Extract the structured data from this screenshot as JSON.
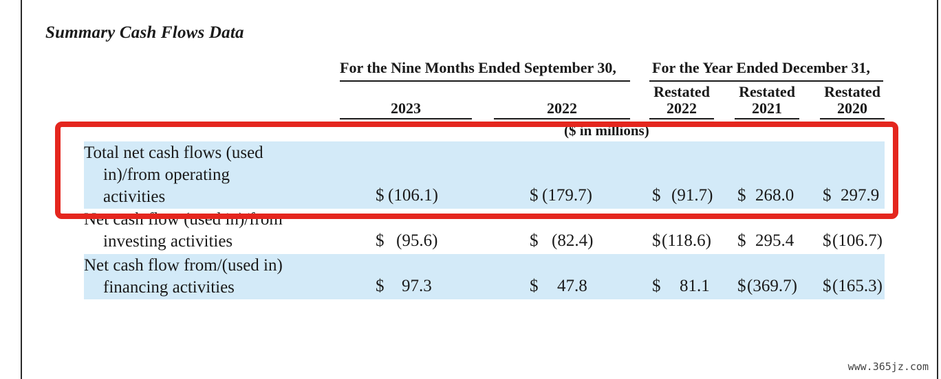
{
  "title": "Summary Cash Flows Data",
  "group_headers": {
    "nine_months": "For the Nine Months Ended September 30,",
    "year_ended": "For the Year Ended December 31,"
  },
  "columns": [
    {
      "line1": "",
      "line2": "2023"
    },
    {
      "line1": "",
      "line2": "2022"
    },
    {
      "line1": "Restated",
      "line2": "2022"
    },
    {
      "line1": "Restated",
      "line2": "2021"
    },
    {
      "line1": "Restated",
      "line2": "2020"
    }
  ],
  "units": "($ in millions)",
  "rows": [
    {
      "label_lines": [
        "Total net cash flows (used",
        "in)/from operating",
        "activities"
      ],
      "highlighted": true,
      "values": [
        {
          "sym": "$",
          "num": "(106.1)"
        },
        {
          "sym": "$",
          "num": "(179.7)"
        },
        {
          "sym": "$",
          "num": "(91.7)"
        },
        {
          "sym": "$",
          "num": "268.0"
        },
        {
          "sym": "$",
          "num": "297.9"
        }
      ]
    },
    {
      "label_lines": [
        "Net cash flow (used in)/from",
        "investing activities"
      ],
      "highlighted": false,
      "values": [
        {
          "sym": "$",
          "num": "(95.6)"
        },
        {
          "sym": "$",
          "num": "(82.4)"
        },
        {
          "sym": "$",
          "num": "(118.6)"
        },
        {
          "sym": "$",
          "num": "295.4"
        },
        {
          "sym": "$",
          "num": "(106.7)"
        }
      ]
    },
    {
      "label_lines": [
        "Net cash flow from/(used in)",
        "financing activities"
      ],
      "highlighted": true,
      "values": [
        {
          "sym": "$",
          "num": "97.3"
        },
        {
          "sym": "$",
          "num": "47.8"
        },
        {
          "sym": "$",
          "num": "81.1"
        },
        {
          "sym": "$",
          "num": "(369.7)"
        },
        {
          "sym": "$",
          "num": "(165.3)"
        }
      ]
    }
  ],
  "annotation_color": "#e4261e",
  "highlight_color": "#d3eaf8",
  "watermark": "www.365jz.com"
}
